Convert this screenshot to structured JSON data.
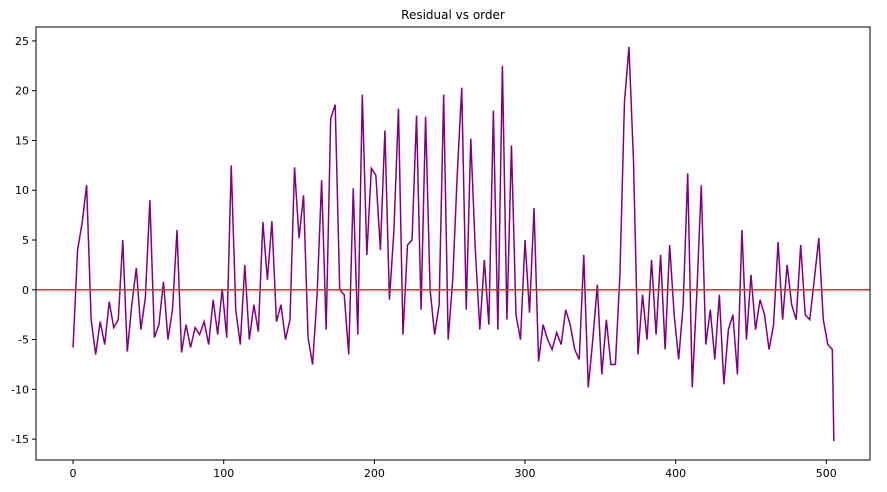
{
  "chart_data": {
    "type": "line",
    "title": "Residual vs order",
    "x": [
      0,
      3,
      6,
      9,
      12,
      15,
      18,
      21,
      24,
      27,
      30,
      33,
      36,
      39,
      42,
      45,
      48,
      51,
      54,
      57,
      60,
      63,
      66,
      69,
      72,
      75,
      78,
      81,
      84,
      87,
      90,
      93,
      96,
      99,
      102,
      105,
      108,
      111,
      114,
      117,
      120,
      123,
      126,
      129,
      132,
      135,
      138,
      141,
      144,
      147,
      150,
      153,
      156,
      159,
      162,
      165,
      168,
      171,
      174,
      177,
      180,
      183,
      186,
      189,
      192,
      195,
      198,
      201,
      204,
      207,
      210,
      213,
      216,
      219,
      222,
      225,
      228,
      231,
      234,
      237,
      240,
      243,
      246,
      249,
      252,
      255,
      258,
      261,
      264,
      267,
      270,
      273,
      276,
      279,
      282,
      285,
      288,
      291,
      294,
      297,
      300,
      303,
      306,
      309,
      312,
      315,
      318,
      321,
      324,
      327,
      330,
      333,
      336,
      339,
      342,
      345,
      348,
      351,
      354,
      357,
      360,
      363,
      366,
      369,
      372,
      375,
      378,
      381,
      384,
      387,
      390,
      393,
      396,
      399,
      402,
      405,
      408,
      411,
      414,
      417,
      420,
      423,
      426,
      429,
      432,
      435,
      438,
      441,
      444,
      447,
      450,
      453,
      456,
      459,
      462,
      465,
      468,
      471,
      474,
      477,
      480,
      483,
      486,
      489,
      492,
      495,
      498,
      501,
      504,
      505
    ],
    "series": [
      {
        "color": "#800080",
        "values": [
          -5.8,
          4,
          6.7,
          10.5,
          -3,
          -6.5,
          -3.2,
          -5.5,
          -1.2,
          -3.8,
          -3,
          5,
          -6.2,
          -1.5,
          2.2,
          -4,
          -0.8,
          9,
          -4.8,
          -3.5,
          0.8,
          -5,
          -2,
          6,
          -6.3,
          -3.5,
          -5.8,
          -3.8,
          -4.5,
          -3.2,
          -5.5,
          -1,
          -4.5,
          0.1,
          -4.8,
          12.5,
          -2,
          -5.5,
          2.5,
          -5,
          -1.5,
          -4.2,
          6.8,
          1,
          6.9,
          -3.2,
          -1.5,
          -5,
          -3,
          12.3,
          5.2,
          9.5,
          -4.8,
          -7.5,
          -0.5,
          11,
          -4,
          17.2,
          18.6,
          0,
          -0.5,
          -6.5,
          10.2,
          -4.5,
          19.6,
          3.5,
          12.2,
          11.5,
          4,
          16,
          -1,
          6,
          18.2,
          -4.5,
          4.5,
          5,
          17.5,
          -2,
          17.4,
          0,
          -4.5,
          -1.5,
          19.6,
          -5,
          1,
          11.5,
          20.3,
          -2,
          15.2,
          4,
          -4,
          3,
          -3.5,
          18,
          -4,
          22.5,
          -3,
          14.5,
          -2.5,
          -5,
          5,
          -2.3,
          8.2,
          -7.2,
          -3.5,
          -5,
          -6,
          -4.3,
          -5.5,
          -2,
          -3.5,
          -6,
          -7,
          3.5,
          -9.8,
          -5,
          0.5,
          -8.5,
          -3,
          -7.5,
          -7.5,
          1.5,
          18.8,
          24.4,
          13,
          -6.5,
          -0.5,
          -5,
          3,
          -4.5,
          3.5,
          -6,
          4.5,
          -2.5,
          -7,
          -1.5,
          11.7,
          -9.8,
          -0.5,
          10.5,
          -5.5,
          -2,
          -7,
          -0.5,
          -9.5,
          -4,
          -2.5,
          -8.5,
          6,
          -5,
          1.5,
          -4,
          -1,
          -2.5,
          -6,
          -3.5,
          4.8,
          -3,
          2.5,
          -1.5,
          -3,
          4.5,
          -2.5,
          -3,
          1,
          5.2,
          -3,
          -5.5,
          -6,
          -15.2
        ]
      }
    ],
    "hline": {
      "value": 0,
      "color": "#e0302a"
    },
    "xlim": [
      -24.6,
      529
    ],
    "ylim": [
      -17.1,
      26.4
    ],
    "xticks": [
      0,
      100,
      200,
      300,
      400,
      500
    ],
    "yticks": [
      -15,
      -10,
      -5,
      0,
      5,
      10,
      15,
      20,
      25
    ]
  }
}
